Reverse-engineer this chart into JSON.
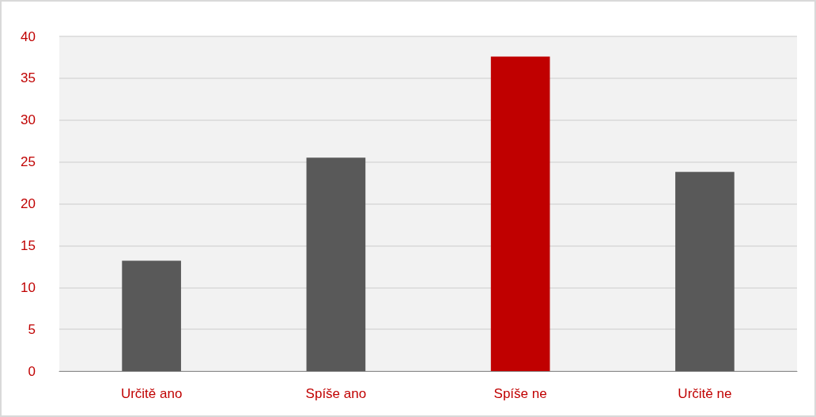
{
  "chart_data": {
    "type": "bar",
    "categories": [
      "Určitě ano",
      "Spíše ano",
      "Spíše ne",
      "Určitě ne"
    ],
    "values": [
      13.2,
      25.5,
      37.6,
      23.8
    ],
    "colors": [
      "#595959",
      "#595959",
      "#c00000",
      "#595959"
    ],
    "ylim": [
      0,
      40
    ],
    "yticks": [
      0,
      5,
      10,
      15,
      20,
      25,
      30,
      35,
      40
    ],
    "grid": "y"
  }
}
